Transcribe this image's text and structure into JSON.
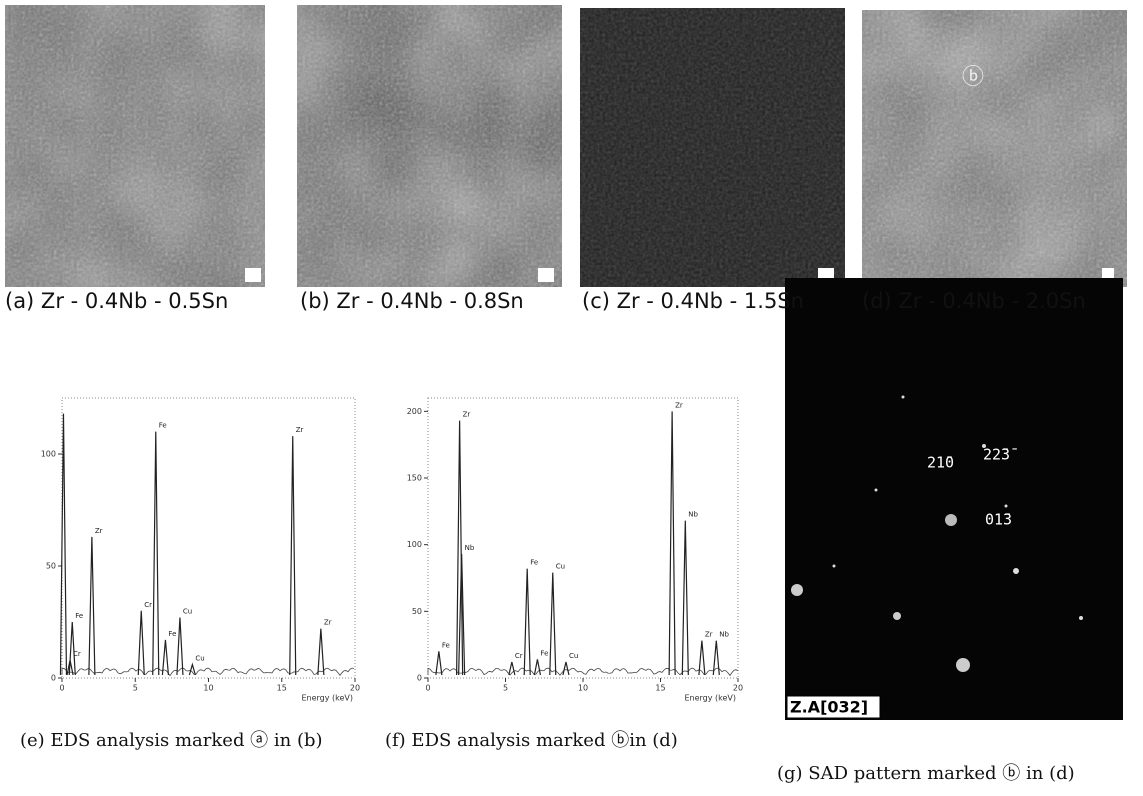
{
  "panels": [
    {
      "caption": "(a) Zr - 0.4Nb - 0.5Sn"
    },
    {
      "caption": "(b) Zr - 0.4Nb - 0.8Sn"
    },
    {
      "caption": "(c) Zr - 0.4Nb - 1.5Sn"
    },
    {
      "caption": "(d) Zr - 0.4Nb - 2.0Sn",
      "marker": "ⓑ"
    }
  ],
  "eds": [
    {
      "caption": "(e) EDS analysis marked ⓐ in (b)",
      "x_label": "Energy (keV)",
      "xlim": [
        0,
        20
      ],
      "xticks": [
        0,
        5,
        10,
        15,
        20
      ],
      "ylim": [
        0,
        125
      ],
      "yticks": [
        0,
        50,
        100
      ],
      "peaks": [
        {
          "x": 0.1,
          "y": 118
        },
        {
          "label": "Fe",
          "x": 0.7,
          "y": 25
        },
        {
          "label": "Cr",
          "x": 0.55,
          "y": 8
        },
        {
          "label": "Zr",
          "x": 2.04,
          "y": 63
        },
        {
          "label": "Cr",
          "x": 5.41,
          "y": 30
        },
        {
          "label": "Fe",
          "x": 6.4,
          "y": 110
        },
        {
          "label": "Fe",
          "x": 7.06,
          "y": 17
        },
        {
          "label": "Cu",
          "x": 8.05,
          "y": 27
        },
        {
          "label": "Cu",
          "x": 8.9,
          "y": 6
        },
        {
          "label": "Zr",
          "x": 15.75,
          "y": 108
        },
        {
          "label": "Zr",
          "x": 17.67,
          "y": 22
        }
      ]
    },
    {
      "caption": "(f) EDS analysis marked ⓑin (d)",
      "x_label": "Energy (keV)",
      "xlim": [
        0,
        20
      ],
      "xticks": [
        0,
        5,
        10,
        15,
        20
      ],
      "ylim": [
        0,
        210
      ],
      "yticks": [
        0,
        50,
        100,
        150,
        200
      ],
      "peaks": [
        {
          "label": "Fe",
          "x": 0.7,
          "y": 20
        },
        {
          "label": "Zr",
          "x": 2.04,
          "y": 193
        },
        {
          "label": "Nb",
          "x": 2.17,
          "y": 93
        },
        {
          "label": "Cr",
          "x": 5.41,
          "y": 12
        },
        {
          "label": "Fe",
          "x": 6.4,
          "y": 82
        },
        {
          "label": "Fe",
          "x": 7.06,
          "y": 14
        },
        {
          "label": "Cu",
          "x": 8.05,
          "y": 79
        },
        {
          "label": "Cu",
          "x": 8.9,
          "y": 12
        },
        {
          "label": "Zr",
          "x": 15.75,
          "y": 200
        },
        {
          "label": "Nb",
          "x": 16.6,
          "y": 118
        },
        {
          "label": "Zr",
          "x": 17.67,
          "y": 28
        },
        {
          "label": "Nb",
          "x": 18.6,
          "y": 28
        }
      ]
    }
  ],
  "sad": {
    "caption": "(g) SAD pattern marked ⓑ in (d)",
    "zone_axis": "Z.A[032]",
    "spots": [
      "21̄0",
      "22̄3̄",
      "01̄3"
    ]
  }
}
